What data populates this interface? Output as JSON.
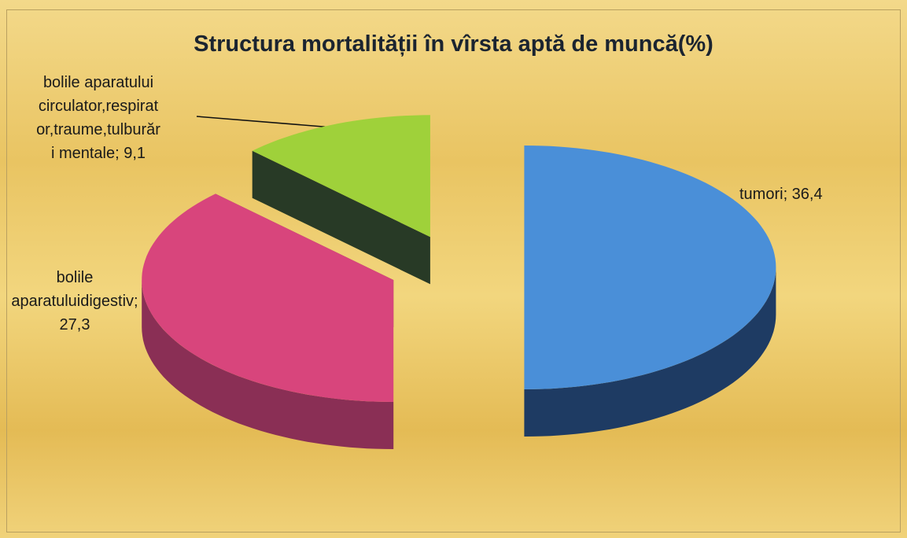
{
  "chart_data": {
    "type": "pie3d",
    "title": "Structura mortalității în vîrsta aptă de muncă(%)",
    "values": [
      36.4,
      27.3,
      9.1
    ],
    "value_labels": [
      "tumori; 36,4",
      "bolile\naparatuluidigestiv;\n27,3",
      "bolile aparatului\ncirculator,respirat\nor,traume,tulburăr\ni mentale; 9,1"
    ],
    "colors": [
      "#4a8fd8",
      "#d8457c",
      "#9fd13a"
    ],
    "side_colors": [
      "#1e3b63",
      "#8a2f55",
      "#283a26"
    ]
  }
}
